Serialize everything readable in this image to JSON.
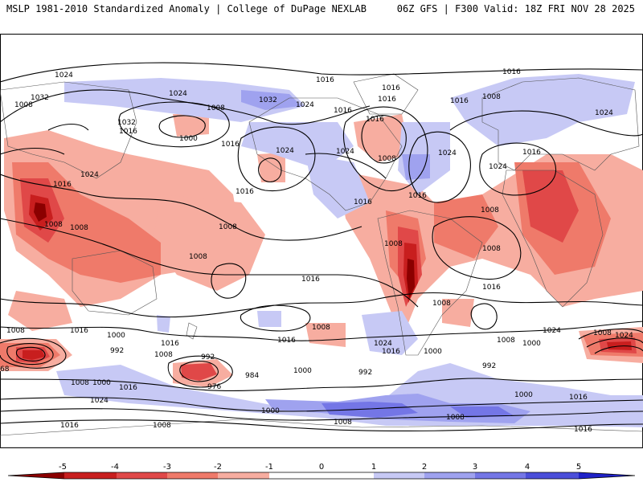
{
  "header": {
    "left": "MSLP 1981-2010 Standardized Anomaly | College of DuPage NEXLAB",
    "right": "06Z GFS | F300 Valid: 18Z FRI NOV 28 2025"
  },
  "palette": {
    "neg5": "#8b0000",
    "neg4": "#c81e1e",
    "neg3": "#e04848",
    "neg2": "#ef7a6a",
    "neg1": "#f7ada0",
    "zero": "#ffffff",
    "pos1": "#c7c9f5",
    "pos2": "#9fa2ef",
    "pos3": "#7476e6",
    "pos4": "#4b4ed9",
    "pos5": "#1f22c8",
    "land": "#cfcfcf",
    "contour": "#000000",
    "border": "#444444"
  },
  "contour_labels": [
    {
      "id": "c1",
      "text": "1024"
    },
    {
      "id": "c2",
      "text": "1032"
    },
    {
      "id": "c3",
      "text": "1024"
    },
    {
      "id": "c4",
      "text": "1008"
    },
    {
      "id": "c5",
      "text": "1032"
    },
    {
      "id": "c6",
      "text": "1016"
    },
    {
      "id": "c7",
      "text": "1000"
    },
    {
      "id": "c8",
      "text": "1016"
    },
    {
      "id": "c9",
      "text": "1032"
    },
    {
      "id": "c10",
      "text": "1024"
    },
    {
      "id": "c11",
      "text": "1016"
    },
    {
      "id": "c12",
      "text": "1024"
    },
    {
      "id": "c13",
      "text": "1016"
    },
    {
      "id": "c14",
      "text": "1016"
    },
    {
      "id": "c15",
      "text": "1024"
    },
    {
      "id": "c16",
      "text": "1016"
    },
    {
      "id": "c17",
      "text": "1016"
    },
    {
      "id": "c18",
      "text": "1016"
    },
    {
      "id": "c19",
      "text": "1008"
    },
    {
      "id": "c20",
      "text": "1024"
    },
    {
      "id": "c21",
      "text": "1024"
    },
    {
      "id": "c22",
      "text": "1008"
    },
    {
      "id": "c23",
      "text": "1016"
    },
    {
      "id": "c24",
      "text": "1016"
    },
    {
      "id": "c25",
      "text": "1024"
    },
    {
      "id": "c26",
      "text": "1016"
    },
    {
      "id": "c27",
      "text": "1008"
    },
    {
      "id": "c28",
      "text": "1008"
    },
    {
      "id": "c29",
      "text": "1008"
    },
    {
      "id": "c30",
      "text": "1008"
    },
    {
      "id": "c31",
      "text": "1008"
    },
    {
      "id": "c32",
      "text": "1008"
    },
    {
      "id": "c33",
      "text": "1008"
    },
    {
      "id": "c34",
      "text": "1016"
    },
    {
      "id": "c35",
      "text": "1016"
    },
    {
      "id": "c36",
      "text": "1016"
    },
    {
      "id": "c37",
      "text": "1008"
    },
    {
      "id": "c38",
      "text": "1016"
    },
    {
      "id": "c39",
      "text": "1000"
    },
    {
      "id": "c40",
      "text": "992"
    },
    {
      "id": "c41",
      "text": "1008"
    },
    {
      "id": "c42",
      "text": "1016"
    },
    {
      "id": "c43",
      "text": "1016"
    },
    {
      "id": "c44",
      "text": "1008"
    },
    {
      "id": "c45",
      "text": "1024"
    },
    {
      "id": "c46",
      "text": "1016"
    },
    {
      "id": "c47",
      "text": "1000"
    },
    {
      "id": "c48",
      "text": "1008"
    },
    {
      "id": "c49",
      "text": "1024"
    },
    {
      "id": "c50",
      "text": "1008"
    },
    {
      "id": "c51",
      "text": "1000"
    },
    {
      "id": "c52",
      "text": "992"
    },
    {
      "id": "c53",
      "text": "992"
    },
    {
      "id": "c54",
      "text": "984"
    },
    {
      "id": "c55",
      "text": "976"
    },
    {
      "id": "c56",
      "text": "1000"
    },
    {
      "id": "c57",
      "text": "992"
    },
    {
      "id": "c58",
      "text": "68"
    },
    {
      "id": "c59",
      "text": "1008"
    },
    {
      "id": "c60",
      "text": "1000"
    },
    {
      "id": "c61",
      "text": "1016"
    },
    {
      "id": "c62",
      "text": "1024"
    },
    {
      "id": "c63",
      "text": "1016"
    },
    {
      "id": "c64",
      "text": "1000"
    },
    {
      "id": "c65",
      "text": "1008"
    },
    {
      "id": "c66",
      "text": "1008"
    },
    {
      "id": "c67",
      "text": "1000"
    },
    {
      "id": "c68",
      "text": "1016"
    },
    {
      "id": "c69",
      "text": "1008"
    },
    {
      "id": "c70",
      "text": "1016"
    },
    {
      "id": "c71",
      "text": "1008"
    },
    {
      "id": "c72",
      "text": "1024"
    },
    {
      "id": "c73",
      "text": "1008"
    },
    {
      "id": "c74",
      "text": "1016"
    },
    {
      "id": "c75",
      "text": "1016"
    },
    {
      "id": "c76",
      "text": "1024"
    }
  ],
  "colorbar": {
    "ticks": [
      "-5",
      "-4",
      "-3",
      "-2",
      "-1",
      "0",
      "1",
      "2",
      "3",
      "4",
      "5"
    ]
  }
}
